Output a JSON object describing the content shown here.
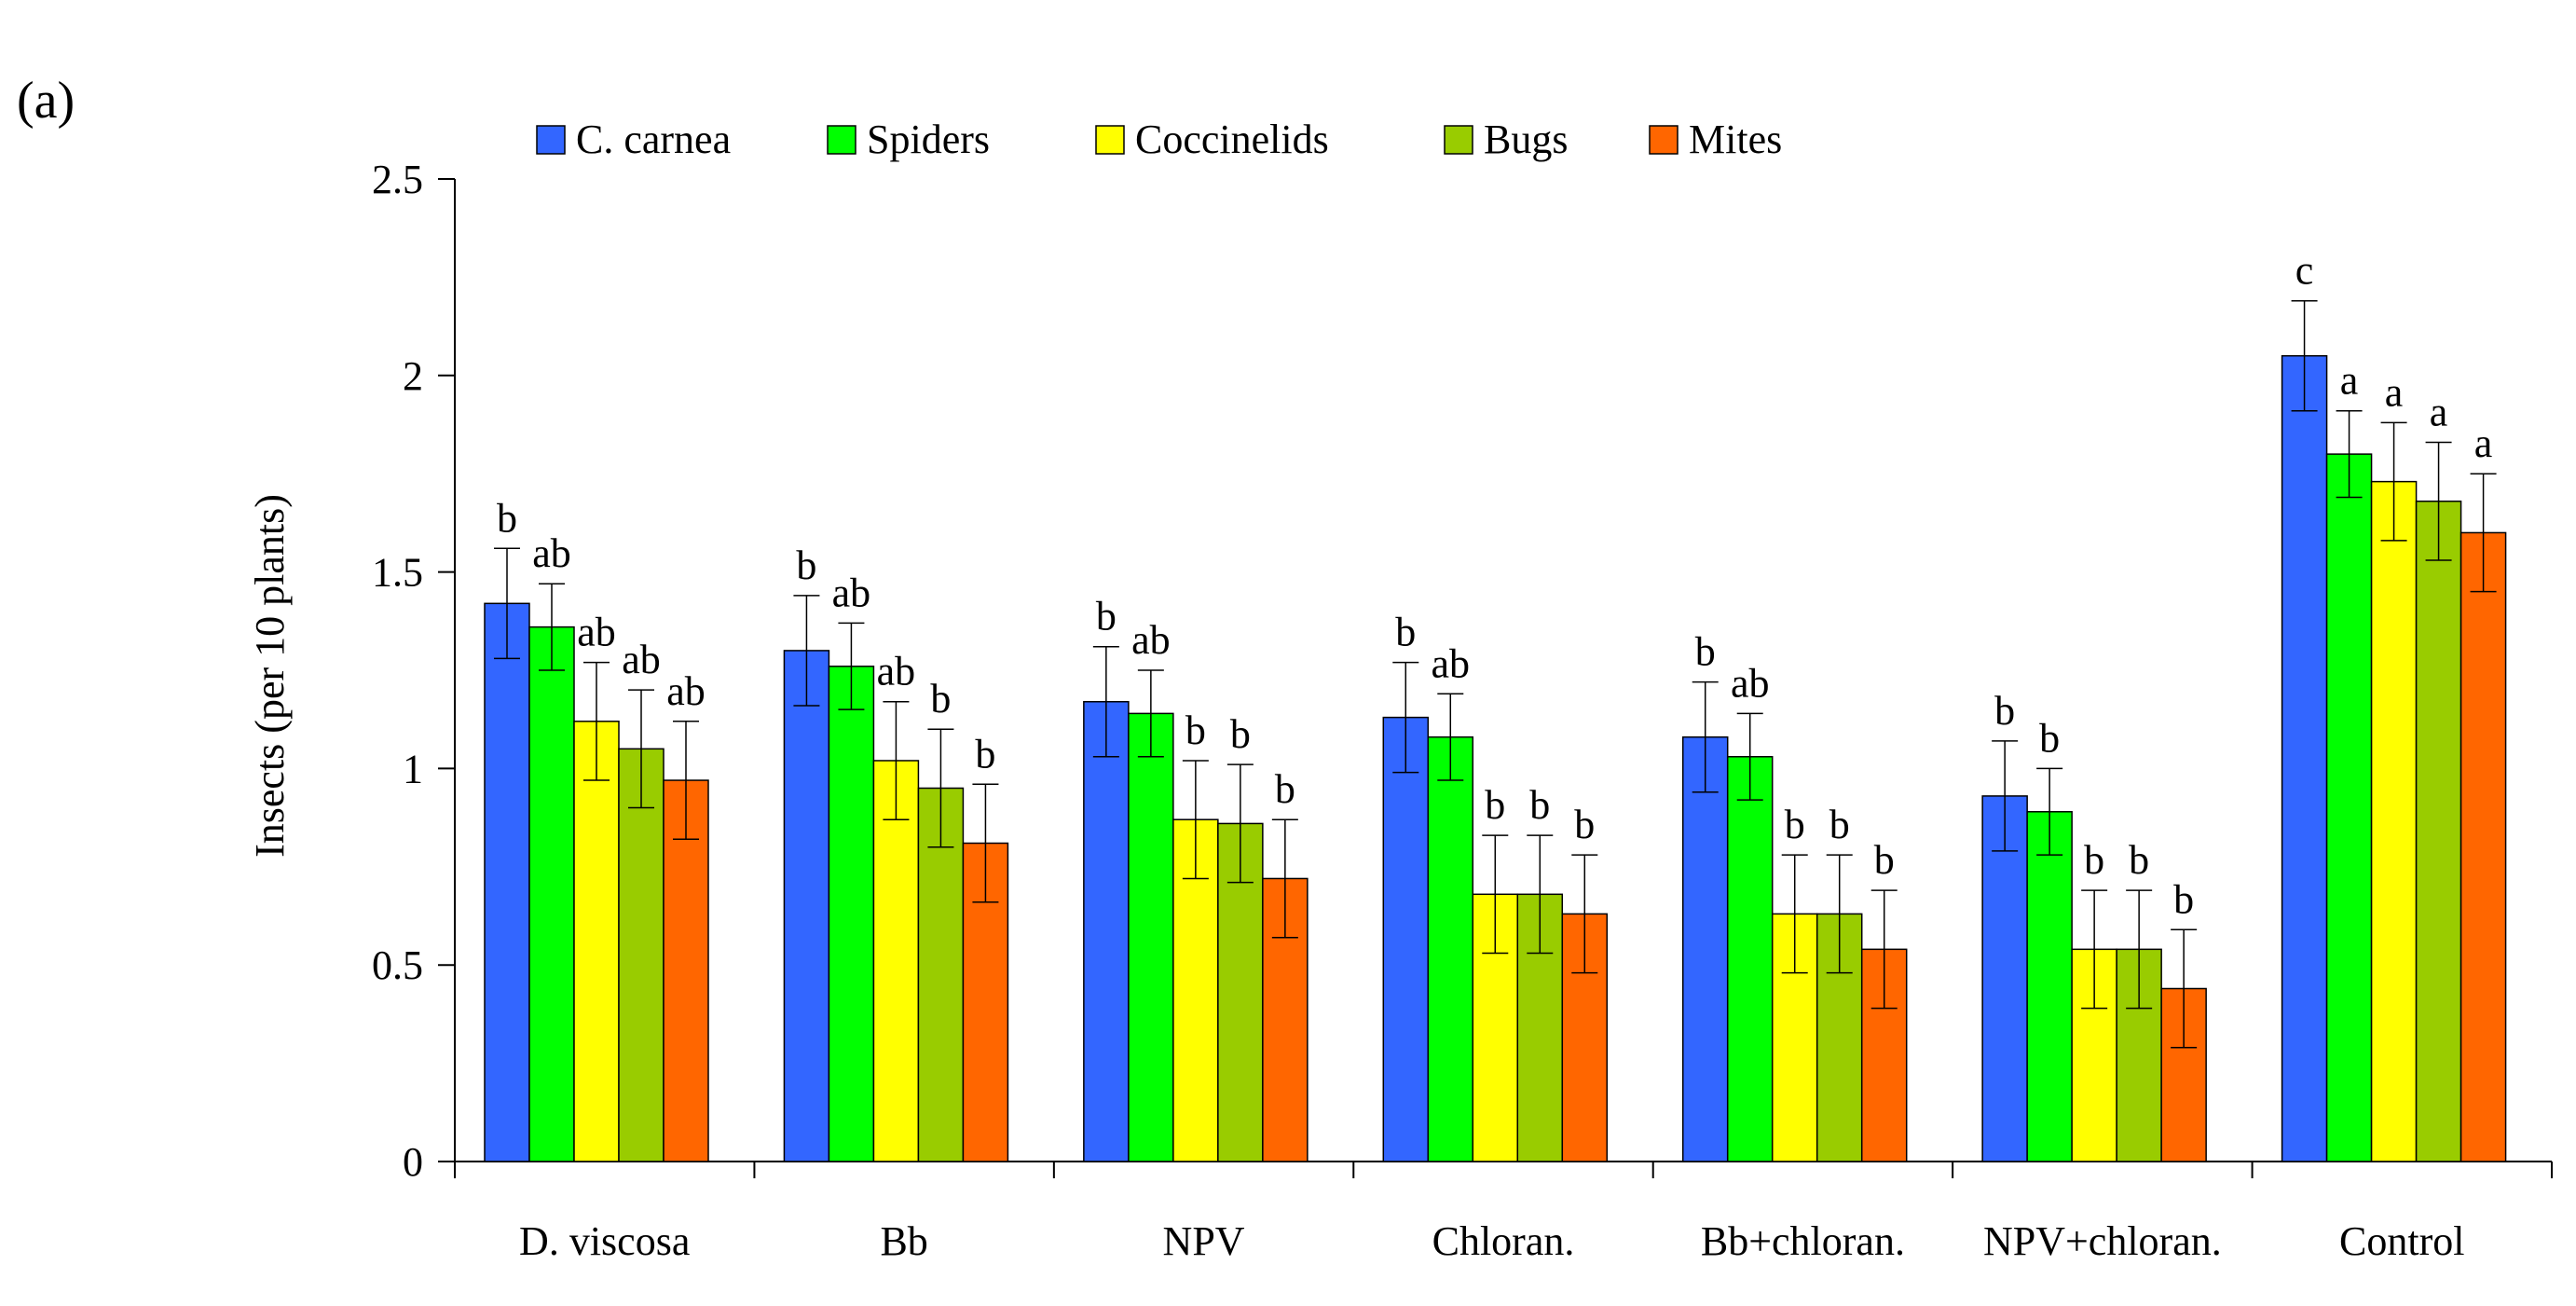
{
  "chart_data": {
    "type": "bar",
    "panel_label": "(a)",
    "title": "",
    "xlabel": "",
    "ylabel": "Insects (per 10 plants)",
    "ylim": [
      0,
      2.5
    ],
    "yticks": [
      0,
      0.5,
      1,
      1.5,
      2,
      2.5
    ],
    "ytick_labels": [
      "0",
      "0.5",
      "1",
      "1.5",
      "2",
      "2.5"
    ],
    "legend_position": "top",
    "grid": false,
    "categories": [
      "D. viscosa",
      "Bb",
      "NPV",
      "Chloran.",
      "Bb+chloran.",
      "NPV+chloran.",
      "Control"
    ],
    "series": [
      {
        "name": "C. carnea",
        "color": "#3366FF",
        "values": [
          1.42,
          1.3,
          1.17,
          1.13,
          1.08,
          0.93,
          2.05
        ],
        "errors": [
          0.14,
          0.14,
          0.14,
          0.14,
          0.14,
          0.14,
          0.14
        ],
        "labels": [
          "b",
          "b",
          "b",
          "b",
          "b",
          "b",
          "c"
        ]
      },
      {
        "name": "Spiders",
        "color": "#00FF00",
        "values": [
          1.36,
          1.26,
          1.14,
          1.08,
          1.03,
          0.89,
          1.8
        ],
        "errors": [
          0.11,
          0.11,
          0.11,
          0.11,
          0.11,
          0.11,
          0.11
        ],
        "labels": [
          "ab",
          "ab",
          "ab",
          "ab",
          "ab",
          "b",
          "a"
        ]
      },
      {
        "name": "Coccinelids",
        "color": "#FFFF00",
        "values": [
          1.12,
          1.02,
          0.87,
          0.68,
          0.63,
          0.54,
          1.73
        ],
        "errors": [
          0.15,
          0.15,
          0.15,
          0.15,
          0.15,
          0.15,
          0.15
        ],
        "labels": [
          "ab",
          "ab",
          "b",
          "b",
          "b",
          "b",
          "a"
        ]
      },
      {
        "name": "Bugs",
        "color": "#99CC00",
        "values": [
          1.05,
          0.95,
          0.86,
          0.68,
          0.63,
          0.54,
          1.68
        ],
        "errors": [
          0.15,
          0.15,
          0.15,
          0.15,
          0.15,
          0.15,
          0.15
        ],
        "labels": [
          "ab",
          "b",
          "b",
          "b",
          "b",
          "b",
          "a"
        ]
      },
      {
        "name": "Mites",
        "color": "#FF6600",
        "values": [
          0.97,
          0.81,
          0.72,
          0.63,
          0.54,
          0.44,
          1.6
        ],
        "errors": [
          0.15,
          0.15,
          0.15,
          0.15,
          0.15,
          0.15,
          0.15
        ],
        "labels": [
          "ab",
          "b",
          "b",
          "b",
          "b",
          "b",
          "a"
        ]
      }
    ]
  }
}
